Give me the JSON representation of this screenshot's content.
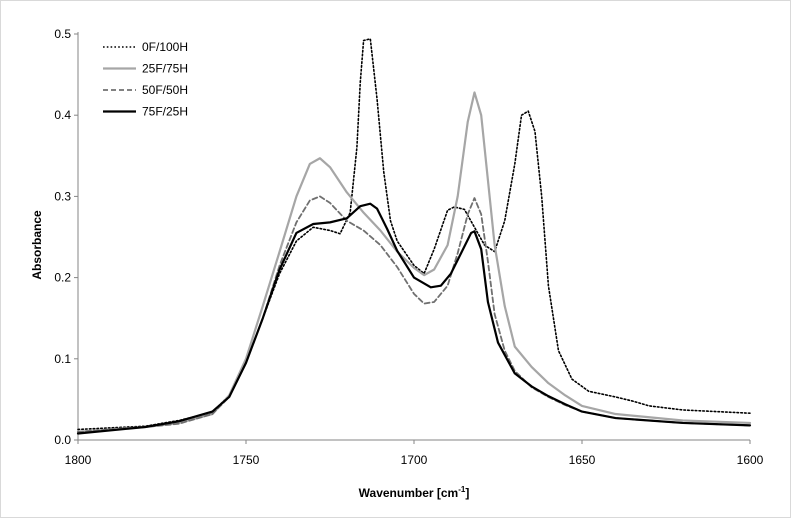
{
  "chart_data": {
    "type": "line",
    "title": "",
    "xlabel": "Wavenumber [cm",
    "xlabel_sup": "-1",
    "xlabel_close": "]",
    "ylabel": "Absorbance",
    "xlim": [
      1800,
      1600
    ],
    "ylim": [
      0,
      0.5
    ],
    "x_reversed": true,
    "x_ticks": [
      1800,
      1750,
      1700,
      1650,
      1600
    ],
    "y_ticks": [
      0,
      0.1,
      0.2,
      0.3,
      0.4,
      0.5
    ],
    "y_tick_labels": [
      "0.0",
      "0.1",
      "0.2",
      "0.3",
      "0.4",
      "0.5"
    ],
    "grid": false,
    "legend_position": "top-left",
    "series": [
      {
        "name": "0F/100H",
        "style": "dotted",
        "color": "#000000",
        "points": [
          [
            1800,
            0.013
          ],
          [
            1780,
            0.017
          ],
          [
            1770,
            0.024
          ],
          [
            1760,
            0.034
          ],
          [
            1755,
            0.055
          ],
          [
            1750,
            0.095
          ],
          [
            1745,
            0.15
          ],
          [
            1740,
            0.205
          ],
          [
            1735,
            0.245
          ],
          [
            1730,
            0.262
          ],
          [
            1725,
            0.258
          ],
          [
            1722,
            0.254
          ],
          [
            1719,
            0.28
          ],
          [
            1717,
            0.36
          ],
          [
            1716,
            0.44
          ],
          [
            1715,
            0.492
          ],
          [
            1713,
            0.494
          ],
          [
            1711,
            0.42
          ],
          [
            1709,
            0.33
          ],
          [
            1707,
            0.27
          ],
          [
            1705,
            0.245
          ],
          [
            1700,
            0.215
          ],
          [
            1697,
            0.205
          ],
          [
            1694,
            0.235
          ],
          [
            1690,
            0.283
          ],
          [
            1688,
            0.287
          ],
          [
            1685,
            0.284
          ],
          [
            1682,
            0.262
          ],
          [
            1679,
            0.24
          ],
          [
            1676,
            0.232
          ],
          [
            1673,
            0.27
          ],
          [
            1670,
            0.34
          ],
          [
            1668,
            0.4
          ],
          [
            1666,
            0.405
          ],
          [
            1664,
            0.38
          ],
          [
            1662,
            0.3
          ],
          [
            1660,
            0.19
          ],
          [
            1657,
            0.11
          ],
          [
            1653,
            0.075
          ],
          [
            1648,
            0.06
          ],
          [
            1640,
            0.053
          ],
          [
            1635,
            0.048
          ],
          [
            1630,
            0.042
          ],
          [
            1620,
            0.037
          ],
          [
            1600,
            0.033
          ]
        ]
      },
      {
        "name": "25F/75H",
        "style": "solid",
        "color": "#a6a6a6",
        "points": [
          [
            1800,
            0.01
          ],
          [
            1780,
            0.016
          ],
          [
            1770,
            0.021
          ],
          [
            1760,
            0.032
          ],
          [
            1755,
            0.055
          ],
          [
            1750,
            0.1
          ],
          [
            1745,
            0.165
          ],
          [
            1740,
            0.232
          ],
          [
            1735,
            0.3
          ],
          [
            1731,
            0.34
          ],
          [
            1728,
            0.347
          ],
          [
            1725,
            0.336
          ],
          [
            1720,
            0.305
          ],
          [
            1715,
            0.28
          ],
          [
            1710,
            0.258
          ],
          [
            1705,
            0.232
          ],
          [
            1700,
            0.212
          ],
          [
            1697,
            0.203
          ],
          [
            1694,
            0.21
          ],
          [
            1690,
            0.24
          ],
          [
            1687,
            0.3
          ],
          [
            1684,
            0.392
          ],
          [
            1682,
            0.428
          ],
          [
            1680,
            0.4
          ],
          [
            1678,
            0.32
          ],
          [
            1676,
            0.24
          ],
          [
            1673,
            0.165
          ],
          [
            1670,
            0.115
          ],
          [
            1665,
            0.09
          ],
          [
            1660,
            0.07
          ],
          [
            1655,
            0.055
          ],
          [
            1650,
            0.042
          ],
          [
            1640,
            0.032
          ],
          [
            1620,
            0.024
          ],
          [
            1600,
            0.021
          ]
        ]
      },
      {
        "name": "50F/50H",
        "style": "dashed",
        "color": "#707070",
        "points": [
          [
            1800,
            0.01
          ],
          [
            1780,
            0.016
          ],
          [
            1770,
            0.02
          ],
          [
            1760,
            0.032
          ],
          [
            1755,
            0.053
          ],
          [
            1750,
            0.095
          ],
          [
            1745,
            0.15
          ],
          [
            1740,
            0.215
          ],
          [
            1735,
            0.268
          ],
          [
            1731,
            0.295
          ],
          [
            1728,
            0.3
          ],
          [
            1725,
            0.292
          ],
          [
            1720,
            0.27
          ],
          [
            1715,
            0.258
          ],
          [
            1710,
            0.24
          ],
          [
            1705,
            0.213
          ],
          [
            1700,
            0.18
          ],
          [
            1697,
            0.168
          ],
          [
            1694,
            0.17
          ],
          [
            1690,
            0.19
          ],
          [
            1687,
            0.23
          ],
          [
            1684,
            0.278
          ],
          [
            1682,
            0.298
          ],
          [
            1680,
            0.278
          ],
          [
            1678,
            0.22
          ],
          [
            1676,
            0.155
          ],
          [
            1673,
            0.11
          ],
          [
            1670,
            0.085
          ],
          [
            1665,
            0.065
          ],
          [
            1660,
            0.053
          ],
          [
            1655,
            0.043
          ],
          [
            1650,
            0.035
          ],
          [
            1640,
            0.027
          ],
          [
            1620,
            0.021
          ],
          [
            1600,
            0.018
          ]
        ]
      },
      {
        "name": "75F/25H",
        "style": "solid-bold",
        "color": "#000000",
        "points": [
          [
            1800,
            0.008
          ],
          [
            1780,
            0.016
          ],
          [
            1770,
            0.023
          ],
          [
            1760,
            0.035
          ],
          [
            1755,
            0.053
          ],
          [
            1750,
            0.095
          ],
          [
            1745,
            0.15
          ],
          [
            1740,
            0.21
          ],
          [
            1735,
            0.255
          ],
          [
            1730,
            0.266
          ],
          [
            1725,
            0.268
          ],
          [
            1720,
            0.273
          ],
          [
            1716,
            0.288
          ],
          [
            1713,
            0.291
          ],
          [
            1711,
            0.285
          ],
          [
            1708,
            0.26
          ],
          [
            1705,
            0.233
          ],
          [
            1700,
            0.2
          ],
          [
            1695,
            0.188
          ],
          [
            1692,
            0.19
          ],
          [
            1689,
            0.205
          ],
          [
            1686,
            0.23
          ],
          [
            1683,
            0.255
          ],
          [
            1682,
            0.257
          ],
          [
            1680,
            0.235
          ],
          [
            1678,
            0.17
          ],
          [
            1675,
            0.12
          ],
          [
            1670,
            0.082
          ],
          [
            1665,
            0.066
          ],
          [
            1660,
            0.054
          ],
          [
            1655,
            0.044
          ],
          [
            1650,
            0.035
          ],
          [
            1640,
            0.027
          ],
          [
            1620,
            0.021
          ],
          [
            1600,
            0.018
          ]
        ]
      }
    ]
  }
}
